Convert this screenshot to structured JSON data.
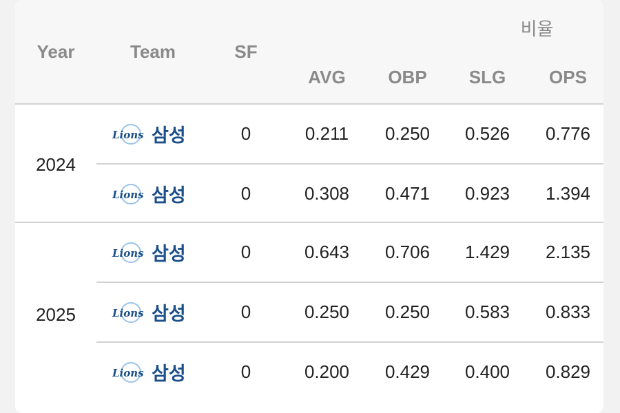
{
  "header": {
    "year": "Year",
    "team": "Team",
    "sf": "SF",
    "group_label": "비율",
    "avg": "AVG",
    "obp": "OBP",
    "slg": "SLG",
    "ops": "OPS"
  },
  "logo": {
    "text": "Lions",
    "color": "#1b4f8a",
    "accent": "#9cc4e8"
  },
  "groups": [
    {
      "year": "2024",
      "rows": [
        {
          "team": "삼성",
          "sf": "0",
          "avg": "0.211",
          "obp": "0.250",
          "slg": "0.526",
          "ops": "0.776"
        },
        {
          "team": "삼성",
          "sf": "0",
          "avg": "0.308",
          "obp": "0.471",
          "slg": "0.923",
          "ops": "1.394"
        }
      ]
    },
    {
      "year": "2025",
      "rows": [
        {
          "team": "삼성",
          "sf": "0",
          "avg": "0.643",
          "obp": "0.706",
          "slg": "1.429",
          "ops": "2.135"
        },
        {
          "team": "삼성",
          "sf": "0",
          "avg": "0.250",
          "obp": "0.250",
          "slg": "0.583",
          "ops": "0.833"
        },
        {
          "team": "삼성",
          "sf": "0",
          "avg": "0.200",
          "obp": "0.429",
          "slg": "0.400",
          "ops": "0.829"
        }
      ]
    }
  ]
}
